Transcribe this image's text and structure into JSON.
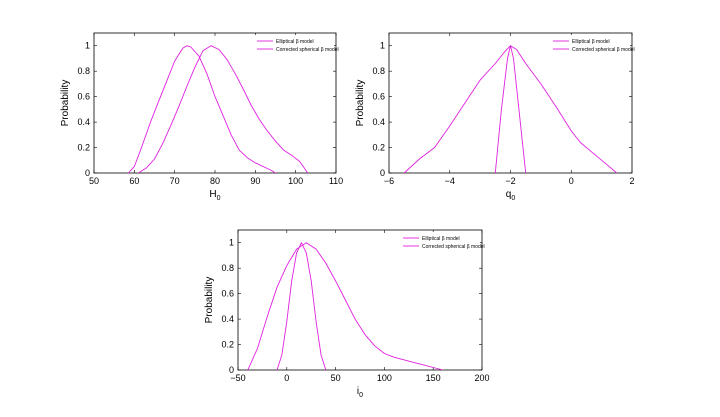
{
  "figure": {
    "series_color": "#e020e0"
  },
  "chart_data": [
    {
      "type": "line",
      "xlabel": "H",
      "xlabel_sub": "0",
      "ylabel": "Probability",
      "xlim": [
        50,
        110
      ],
      "ylim": [
        0,
        1.1
      ],
      "xticks": [
        50,
        60,
        70,
        80,
        90,
        100,
        110
      ],
      "yticks": [
        0,
        0.2,
        0.4,
        0.6,
        0.8,
        1
      ],
      "legend_position": "top-right",
      "series": [
        {
          "name": "Elliptical β model",
          "x": [
            61,
            63,
            65,
            67,
            69,
            71,
            73,
            75,
            77,
            79,
            81,
            83,
            85,
            87,
            89,
            91,
            93,
            95,
            97,
            99,
            101,
            103
          ],
          "y": [
            0,
            0.04,
            0.11,
            0.23,
            0.37,
            0.52,
            0.68,
            0.83,
            0.96,
            1,
            0.97,
            0.89,
            0.78,
            0.66,
            0.53,
            0.42,
            0.33,
            0.25,
            0.18,
            0.14,
            0.09,
            0
          ]
        },
        {
          "name": "Corrected spherical β model",
          "x": [
            58.5,
            60,
            62,
            64,
            66,
            68,
            70,
            72,
            73,
            74,
            76,
            78,
            80,
            82,
            84,
            86,
            88,
            90,
            92,
            94,
            95
          ],
          "y": [
            0,
            0.05,
            0.22,
            0.4,
            0.56,
            0.72,
            0.88,
            0.98,
            1,
            0.99,
            0.92,
            0.78,
            0.6,
            0.45,
            0.3,
            0.18,
            0.12,
            0.08,
            0.05,
            0.02,
            0
          ]
        }
      ]
    },
    {
      "type": "line",
      "xlabel": "q",
      "xlabel_sub": "0",
      "ylabel": "Probability",
      "xlim": [
        -6,
        2
      ],
      "ylim": [
        0,
        1.1
      ],
      "xticks": [
        -6,
        -4,
        -2,
        0,
        2
      ],
      "xtick_labels": [
        "−6",
        "−4",
        "−2",
        "0",
        "2"
      ],
      "yticks": [
        0,
        0.2,
        0.4,
        0.6,
        0.8,
        1
      ],
      "legend_position": "top-right",
      "series": [
        {
          "name": "Elliptical β model",
          "x": [
            -5.5,
            -5,
            -4.5,
            -4,
            -3.5,
            -3,
            -2.5,
            -2.2,
            -2,
            -1.8,
            -1.5,
            -1,
            -0.5,
            0,
            0.3,
            0.8,
            1.1,
            1.5
          ],
          "y": [
            0,
            0.11,
            0.2,
            0.37,
            0.55,
            0.73,
            0.86,
            0.95,
            1,
            0.97,
            0.86,
            0.7,
            0.52,
            0.33,
            0.24,
            0.14,
            0.08,
            0
          ]
        },
        {
          "name": "Corrected spherical β model",
          "x": [
            -2.5,
            -2.3,
            -2.1,
            -2,
            -1.9,
            -1.7,
            -1.5
          ],
          "y": [
            0,
            0.5,
            0.9,
            1,
            0.9,
            0.45,
            0
          ]
        }
      ]
    },
    {
      "type": "line",
      "xlabel": "i",
      "xlabel_sub": "0",
      "ylabel": "Probability",
      "xlim": [
        -50,
        200
      ],
      "ylim": [
        0,
        1.1
      ],
      "xticks": [
        -50,
        0,
        50,
        100,
        150,
        200
      ],
      "xtick_labels": [
        "−50",
        "0",
        "50",
        "100",
        "150",
        "200"
      ],
      "yticks": [
        0,
        0.2,
        0.4,
        0.6,
        0.8,
        1
      ],
      "legend_position": "top-right",
      "series": [
        {
          "name": "Elliptical β model",
          "x": [
            -40,
            -30,
            -20,
            -10,
            0,
            10,
            20,
            30,
            40,
            50,
            60,
            70,
            80,
            90,
            100,
            110,
            120,
            130,
            140,
            150,
            160
          ],
          "y": [
            0,
            0.17,
            0.42,
            0.65,
            0.82,
            0.95,
            1,
            0.95,
            0.84,
            0.7,
            0.55,
            0.4,
            0.28,
            0.19,
            0.13,
            0.1,
            0.08,
            0.06,
            0.04,
            0.02,
            0
          ]
        },
        {
          "name": "Corrected spherical β model",
          "x": [
            -10,
            -5,
            0,
            5,
            10,
            15,
            20,
            25,
            30,
            35,
            40
          ],
          "y": [
            0,
            0.12,
            0.38,
            0.7,
            0.92,
            1,
            0.92,
            0.7,
            0.38,
            0.12,
            0
          ]
        }
      ]
    }
  ]
}
